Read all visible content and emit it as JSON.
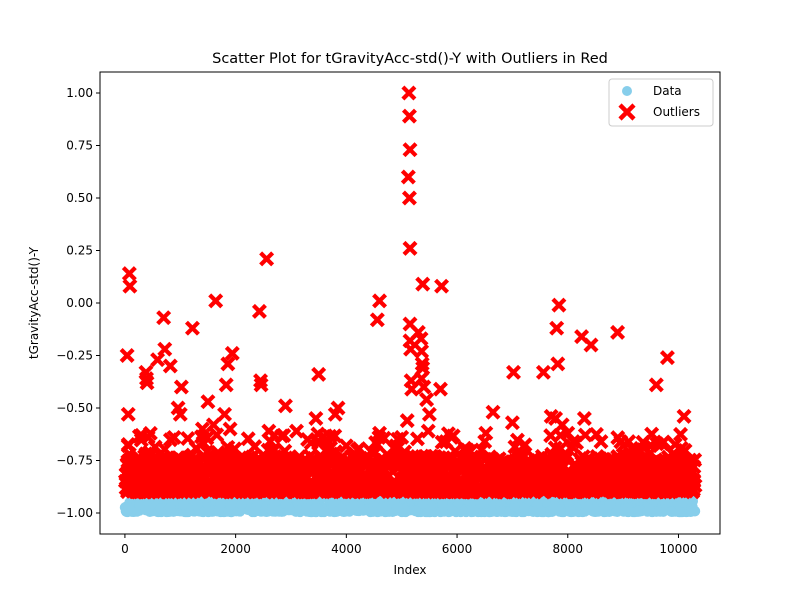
{
  "chart_data": {
    "type": "scatter",
    "title": "Scatter Plot for tGravityAcc-std()-Y with Outliers in Red",
    "xlabel": "Index",
    "ylabel": "tGravityAcc-std()-Y",
    "xlim": [
      -450,
      10750
    ],
    "ylim": [
      -1.1,
      1.1
    ],
    "xticks": [
      0,
      2000,
      4000,
      6000,
      8000,
      10000
    ],
    "xtick_labels": [
      "0",
      "2000",
      "4000",
      "6000",
      "8000",
      "10000"
    ],
    "yticks": [
      -1.0,
      -0.75,
      -0.5,
      -0.25,
      0.0,
      0.25,
      0.5,
      0.75,
      1.0
    ],
    "ytick_labels": [
      "−1.00",
      "−0.75",
      "−0.50",
      "−0.25",
      "0.00",
      "0.25",
      "0.50",
      "0.75",
      "1.00"
    ],
    "grid": false,
    "legend_position": "top-right",
    "series": [
      {
        "name": "Data",
        "color": "#87ceeb",
        "marker": "circle",
        "note": "dense band of ~10300 points between approx -1.00 and -0.92",
        "x_range": [
          0,
          10300
        ],
        "y_band": [
          -0.995,
          -0.92
        ]
      },
      {
        "name": "Outliers",
        "color": "#ff0000",
        "marker": "x",
        "points": [
          [
            40,
            -0.25
          ],
          [
            60,
            -0.53
          ],
          [
            80,
            0.14
          ],
          [
            90,
            0.08
          ],
          [
            60,
            -0.68
          ],
          [
            80,
            -0.72
          ],
          [
            100,
            -0.78
          ],
          [
            380,
            -0.33
          ],
          [
            390,
            -0.36
          ],
          [
            400,
            -0.38
          ],
          [
            420,
            -0.64
          ],
          [
            300,
            -0.63
          ],
          [
            590,
            -0.27
          ],
          [
            700,
            -0.07
          ],
          [
            720,
            -0.22
          ],
          [
            820,
            -0.3
          ],
          [
            960,
            -0.5
          ],
          [
            1020,
            -0.4
          ],
          [
            1000,
            -0.53
          ],
          [
            1220,
            -0.12
          ],
          [
            1400,
            -0.6
          ],
          [
            1500,
            -0.47
          ],
          [
            1600,
            -0.58
          ],
          [
            1640,
            0.01
          ],
          [
            1800,
            -0.53
          ],
          [
            1830,
            -0.39
          ],
          [
            1860,
            -0.29
          ],
          [
            1940,
            -0.24
          ],
          [
            1900,
            -0.6
          ],
          [
            2430,
            -0.04
          ],
          [
            2450,
            -0.37
          ],
          [
            2460,
            -0.39
          ],
          [
            2560,
            0.21
          ],
          [
            2600,
            -0.61
          ],
          [
            2700,
            -0.63
          ],
          [
            2900,
            -0.49
          ],
          [
            3100,
            -0.61
          ],
          [
            3300,
            -0.65
          ],
          [
            3450,
            -0.55
          ],
          [
            3500,
            -0.34
          ],
          [
            3800,
            -0.53
          ],
          [
            3850,
            -0.5
          ],
          [
            4000,
            -0.68
          ],
          [
            4200,
            -0.7
          ],
          [
            4560,
            -0.08
          ],
          [
            4600,
            0.01
          ],
          [
            4600,
            -0.62
          ],
          [
            4900,
            -0.68
          ],
          [
            5000,
            -0.64
          ],
          [
            5100,
            -0.56
          ],
          [
            5130,
            1.0
          ],
          [
            5140,
            0.89
          ],
          [
            5150,
            0.73
          ],
          [
            5120,
            0.6
          ],
          [
            5140,
            0.5
          ],
          [
            5150,
            0.26
          ],
          [
            5150,
            -0.1
          ],
          [
            5150,
            -0.18
          ],
          [
            5160,
            -0.22
          ],
          [
            5170,
            -0.37
          ],
          [
            5180,
            -0.41
          ],
          [
            5300,
            -0.14
          ],
          [
            5350,
            -0.17
          ],
          [
            5380,
            0.09
          ],
          [
            5360,
            -0.23
          ],
          [
            5370,
            -0.29
          ],
          [
            5380,
            -0.31
          ],
          [
            5360,
            -0.36
          ],
          [
            5400,
            -0.4
          ],
          [
            5450,
            -0.46
          ],
          [
            5500,
            -0.53
          ],
          [
            5480,
            -0.61
          ],
          [
            5700,
            -0.41
          ],
          [
            5720,
            0.08
          ],
          [
            5800,
            -0.66
          ],
          [
            5900,
            -0.64
          ],
          [
            6100,
            -0.74
          ],
          [
            6500,
            -0.66
          ],
          [
            6520,
            -0.62
          ],
          [
            6650,
            -0.52
          ],
          [
            7000,
            -0.57
          ],
          [
            7020,
            -0.33
          ],
          [
            7300,
            -0.75
          ],
          [
            7560,
            -0.33
          ],
          [
            7700,
            -0.54
          ],
          [
            7780,
            -0.55
          ],
          [
            7800,
            -0.12
          ],
          [
            7820,
            -0.29
          ],
          [
            7840,
            -0.01
          ],
          [
            7900,
            -0.58
          ],
          [
            8000,
            -0.62
          ],
          [
            8100,
            -0.66
          ],
          [
            8250,
            -0.16
          ],
          [
            8300,
            -0.55
          ],
          [
            8420,
            -0.2
          ],
          [
            8600,
            -0.66
          ],
          [
            8900,
            -0.14
          ],
          [
            9000,
            -0.68
          ],
          [
            9100,
            -0.66
          ],
          [
            9300,
            -0.7
          ],
          [
            9600,
            -0.39
          ],
          [
            9700,
            -0.67
          ],
          [
            9800,
            -0.26
          ],
          [
            9900,
            -0.72
          ],
          [
            10100,
            -0.54
          ],
          [
            10200,
            -0.75
          ],
          [
            10300,
            -0.87
          ]
        ],
        "note": "plus a dense red band between approx -0.90 and -0.75 across index 0-10300"
      }
    ],
    "legend": [
      {
        "label": "Data",
        "color": "#87ceeb",
        "marker": "circle"
      },
      {
        "label": "Outliers",
        "color": "#ff0000",
        "marker": "x"
      }
    ]
  }
}
